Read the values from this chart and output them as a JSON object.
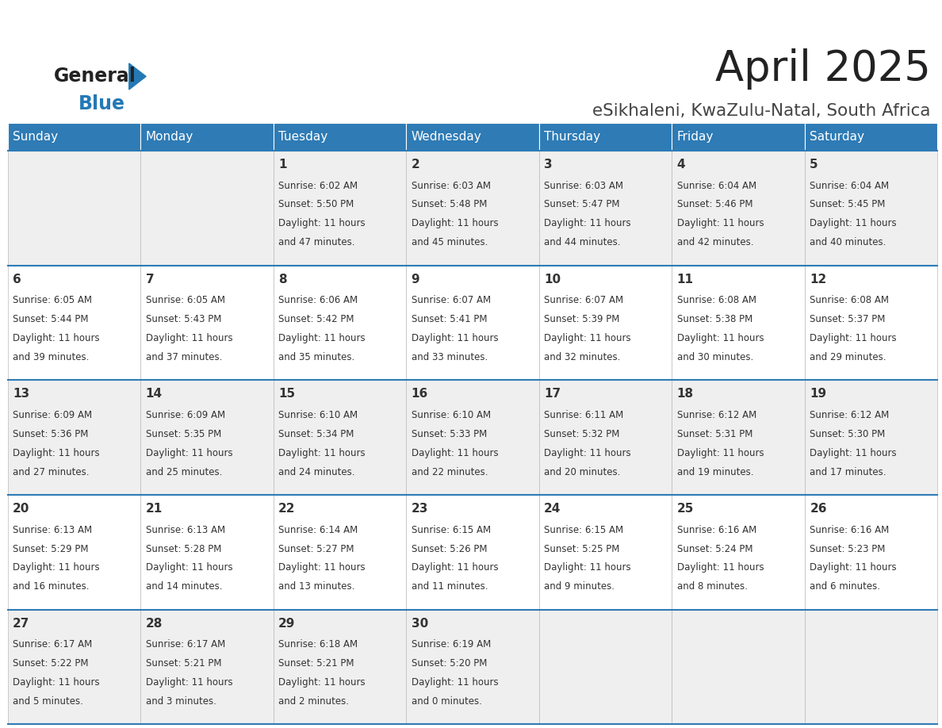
{
  "title": "April 2025",
  "subtitle": "eSikhaleni, KwaZulu-Natal, South Africa",
  "header_bg": "#2E7BB5",
  "header_text": "#FFFFFF",
  "cell_bg_odd": "#EFEFEF",
  "cell_bg_even": "#FFFFFF",
  "text_color": "#333333",
  "day_names": [
    "Sunday",
    "Monday",
    "Tuesday",
    "Wednesday",
    "Thursday",
    "Friday",
    "Saturday"
  ],
  "weeks": [
    [
      {
        "day": "",
        "sunrise": "",
        "sunset": "",
        "daylight1": "",
        "daylight2": ""
      },
      {
        "day": "",
        "sunrise": "",
        "sunset": "",
        "daylight1": "",
        "daylight2": ""
      },
      {
        "day": "1",
        "sunrise": "Sunrise: 6:02 AM",
        "sunset": "Sunset: 5:50 PM",
        "daylight1": "Daylight: 11 hours",
        "daylight2": "and 47 minutes."
      },
      {
        "day": "2",
        "sunrise": "Sunrise: 6:03 AM",
        "sunset": "Sunset: 5:48 PM",
        "daylight1": "Daylight: 11 hours",
        "daylight2": "and 45 minutes."
      },
      {
        "day": "3",
        "sunrise": "Sunrise: 6:03 AM",
        "sunset": "Sunset: 5:47 PM",
        "daylight1": "Daylight: 11 hours",
        "daylight2": "and 44 minutes."
      },
      {
        "day": "4",
        "sunrise": "Sunrise: 6:04 AM",
        "sunset": "Sunset: 5:46 PM",
        "daylight1": "Daylight: 11 hours",
        "daylight2": "and 42 minutes."
      },
      {
        "day": "5",
        "sunrise": "Sunrise: 6:04 AM",
        "sunset": "Sunset: 5:45 PM",
        "daylight1": "Daylight: 11 hours",
        "daylight2": "and 40 minutes."
      }
    ],
    [
      {
        "day": "6",
        "sunrise": "Sunrise: 6:05 AM",
        "sunset": "Sunset: 5:44 PM",
        "daylight1": "Daylight: 11 hours",
        "daylight2": "and 39 minutes."
      },
      {
        "day": "7",
        "sunrise": "Sunrise: 6:05 AM",
        "sunset": "Sunset: 5:43 PM",
        "daylight1": "Daylight: 11 hours",
        "daylight2": "and 37 minutes."
      },
      {
        "day": "8",
        "sunrise": "Sunrise: 6:06 AM",
        "sunset": "Sunset: 5:42 PM",
        "daylight1": "Daylight: 11 hours",
        "daylight2": "and 35 minutes."
      },
      {
        "day": "9",
        "sunrise": "Sunrise: 6:07 AM",
        "sunset": "Sunset: 5:41 PM",
        "daylight1": "Daylight: 11 hours",
        "daylight2": "and 33 minutes."
      },
      {
        "day": "10",
        "sunrise": "Sunrise: 6:07 AM",
        "sunset": "Sunset: 5:39 PM",
        "daylight1": "Daylight: 11 hours",
        "daylight2": "and 32 minutes."
      },
      {
        "day": "11",
        "sunrise": "Sunrise: 6:08 AM",
        "sunset": "Sunset: 5:38 PM",
        "daylight1": "Daylight: 11 hours",
        "daylight2": "and 30 minutes."
      },
      {
        "day": "12",
        "sunrise": "Sunrise: 6:08 AM",
        "sunset": "Sunset: 5:37 PM",
        "daylight1": "Daylight: 11 hours",
        "daylight2": "and 29 minutes."
      }
    ],
    [
      {
        "day": "13",
        "sunrise": "Sunrise: 6:09 AM",
        "sunset": "Sunset: 5:36 PM",
        "daylight1": "Daylight: 11 hours",
        "daylight2": "and 27 minutes."
      },
      {
        "day": "14",
        "sunrise": "Sunrise: 6:09 AM",
        "sunset": "Sunset: 5:35 PM",
        "daylight1": "Daylight: 11 hours",
        "daylight2": "and 25 minutes."
      },
      {
        "day": "15",
        "sunrise": "Sunrise: 6:10 AM",
        "sunset": "Sunset: 5:34 PM",
        "daylight1": "Daylight: 11 hours",
        "daylight2": "and 24 minutes."
      },
      {
        "day": "16",
        "sunrise": "Sunrise: 6:10 AM",
        "sunset": "Sunset: 5:33 PM",
        "daylight1": "Daylight: 11 hours",
        "daylight2": "and 22 minutes."
      },
      {
        "day": "17",
        "sunrise": "Sunrise: 6:11 AM",
        "sunset": "Sunset: 5:32 PM",
        "daylight1": "Daylight: 11 hours",
        "daylight2": "and 20 minutes."
      },
      {
        "day": "18",
        "sunrise": "Sunrise: 6:12 AM",
        "sunset": "Sunset: 5:31 PM",
        "daylight1": "Daylight: 11 hours",
        "daylight2": "and 19 minutes."
      },
      {
        "day": "19",
        "sunrise": "Sunrise: 6:12 AM",
        "sunset": "Sunset: 5:30 PM",
        "daylight1": "Daylight: 11 hours",
        "daylight2": "and 17 minutes."
      }
    ],
    [
      {
        "day": "20",
        "sunrise": "Sunrise: 6:13 AM",
        "sunset": "Sunset: 5:29 PM",
        "daylight1": "Daylight: 11 hours",
        "daylight2": "and 16 minutes."
      },
      {
        "day": "21",
        "sunrise": "Sunrise: 6:13 AM",
        "sunset": "Sunset: 5:28 PM",
        "daylight1": "Daylight: 11 hours",
        "daylight2": "and 14 minutes."
      },
      {
        "day": "22",
        "sunrise": "Sunrise: 6:14 AM",
        "sunset": "Sunset: 5:27 PM",
        "daylight1": "Daylight: 11 hours",
        "daylight2": "and 13 minutes."
      },
      {
        "day": "23",
        "sunrise": "Sunrise: 6:15 AM",
        "sunset": "Sunset: 5:26 PM",
        "daylight1": "Daylight: 11 hours",
        "daylight2": "and 11 minutes."
      },
      {
        "day": "24",
        "sunrise": "Sunrise: 6:15 AM",
        "sunset": "Sunset: 5:25 PM",
        "daylight1": "Daylight: 11 hours",
        "daylight2": "and 9 minutes."
      },
      {
        "day": "25",
        "sunrise": "Sunrise: 6:16 AM",
        "sunset": "Sunset: 5:24 PM",
        "daylight1": "Daylight: 11 hours",
        "daylight2": "and 8 minutes."
      },
      {
        "day": "26",
        "sunrise": "Sunrise: 6:16 AM",
        "sunset": "Sunset: 5:23 PM",
        "daylight1": "Daylight: 11 hours",
        "daylight2": "and 6 minutes."
      }
    ],
    [
      {
        "day": "27",
        "sunrise": "Sunrise: 6:17 AM",
        "sunset": "Sunset: 5:22 PM",
        "daylight1": "Daylight: 11 hours",
        "daylight2": "and 5 minutes."
      },
      {
        "day": "28",
        "sunrise": "Sunrise: 6:17 AM",
        "sunset": "Sunset: 5:21 PM",
        "daylight1": "Daylight: 11 hours",
        "daylight2": "and 3 minutes."
      },
      {
        "day": "29",
        "sunrise": "Sunrise: 6:18 AM",
        "sunset": "Sunset: 5:21 PM",
        "daylight1": "Daylight: 11 hours",
        "daylight2": "and 2 minutes."
      },
      {
        "day": "30",
        "sunrise": "Sunrise: 6:19 AM",
        "sunset": "Sunset: 5:20 PM",
        "daylight1": "Daylight: 11 hours",
        "daylight2": "and 0 minutes."
      },
      {
        "day": "",
        "sunrise": "",
        "sunset": "",
        "daylight1": "",
        "daylight2": ""
      },
      {
        "day": "",
        "sunrise": "",
        "sunset": "",
        "daylight1": "",
        "daylight2": ""
      },
      {
        "day": "",
        "sunrise": "",
        "sunset": "",
        "daylight1": "",
        "daylight2": ""
      }
    ]
  ],
  "logo_general_color": "#222222",
  "logo_blue_color": "#2479B5",
  "logo_triangle_color": "#2479B5",
  "title_color": "#222222",
  "subtitle_color": "#444444"
}
